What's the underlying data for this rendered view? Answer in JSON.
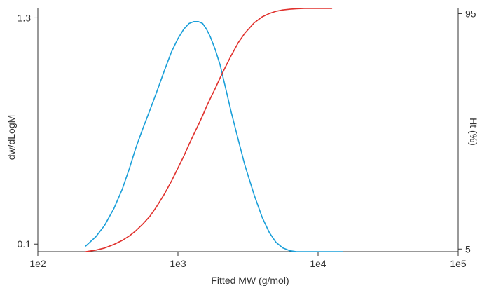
{
  "chart_data": {
    "type": "line",
    "xlabel": "Fitted MW (g/mol)",
    "ylabel_left": "dw/dLogM",
    "ylabel_right": "Ht (%)",
    "x_scale": "log",
    "xlim": [
      100,
      100000
    ],
    "x_ticks": [
      "1e2",
      "1e3",
      "1e4",
      "1e5"
    ],
    "left_axis": {
      "ylim": [
        0.06,
        1.35
      ],
      "ticks": [
        "0.1",
        "1.3"
      ]
    },
    "right_axis": {
      "ylim": [
        4,
        97
      ],
      "ticks": [
        "5",
        "95"
      ]
    },
    "grid": false,
    "series": [
      {
        "axis": "left",
        "color": "#1a9fd9",
        "x": [
          220,
          260,
          300,
          350,
          400,
          450,
          500,
          560,
          630,
          700,
          800,
          900,
          1000,
          1100,
          1200,
          1300,
          1400,
          1500,
          1600,
          1700,
          1850,
          2000,
          2200,
          2400,
          2700,
          3000,
          3500,
          4000,
          4500,
          5000,
          5600,
          6300,
          7000,
          8000,
          9000,
          10000,
          12000,
          15000
        ],
        "values": [
          0.09,
          0.14,
          0.2,
          0.29,
          0.39,
          0.5,
          0.61,
          0.71,
          0.81,
          0.9,
          1.02,
          1.12,
          1.19,
          1.24,
          1.27,
          1.28,
          1.28,
          1.27,
          1.24,
          1.2,
          1.13,
          1.05,
          0.92,
          0.8,
          0.65,
          0.52,
          0.36,
          0.24,
          0.16,
          0.11,
          0.08,
          0.065,
          0.06,
          0.06,
          0.06,
          0.06,
          0.06,
          0.06
        ]
      },
      {
        "axis": "right",
        "color": "#e0312d",
        "x": [
          220,
          260,
          300,
          350,
          400,
          450,
          500,
          560,
          630,
          700,
          800,
          900,
          1000,
          1100,
          1200,
          1300,
          1400,
          1500,
          1600,
          1700,
          1850,
          2000,
          2200,
          2400,
          2700,
          3000,
          3500,
          4000,
          4500,
          5000,
          5600,
          6300,
          7000,
          8000,
          9000,
          10000,
          11000,
          12500
        ],
        "values": [
          4,
          4.6,
          5.4,
          6.8,
          8.3,
          10,
          12,
          14.5,
          17.5,
          21,
          26,
          31,
          36,
          40.5,
          45,
          49,
          52.5,
          56,
          59.5,
          62.5,
          66.5,
          70.5,
          75,
          79,
          84,
          87.5,
          91.5,
          93.8,
          95.1,
          95.9,
          96.4,
          96.7,
          96.9,
          97,
          97,
          97,
          97,
          97
        ]
      }
    ]
  }
}
